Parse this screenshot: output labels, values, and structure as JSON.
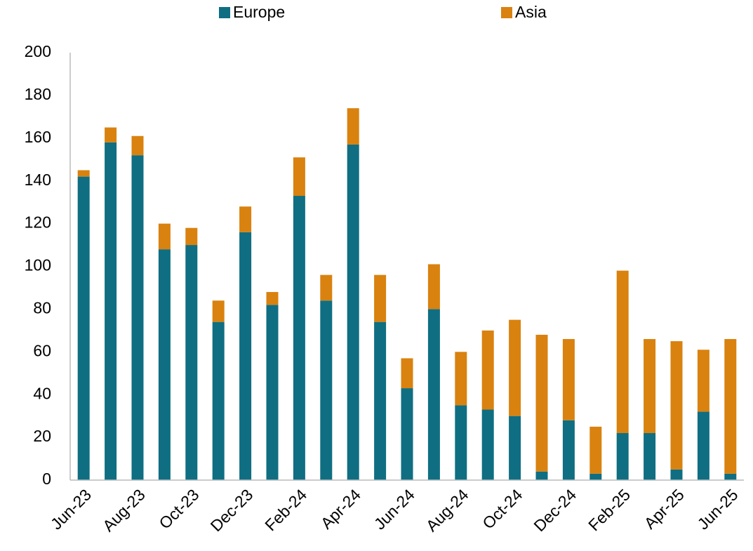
{
  "chart_data": {
    "type": "stacked_bar",
    "categories": [
      "Jun-23",
      null,
      "Aug-23",
      null,
      "Oct-23",
      null,
      "Dec-23",
      null,
      "Feb-24",
      null,
      "Apr-24",
      null,
      "Jun-24",
      null,
      "Aug-24",
      null,
      "Oct-24",
      null,
      "Dec-24",
      null,
      "Feb-25",
      null,
      "Apr-25",
      null,
      "Jun-25"
    ],
    "series": [
      {
        "name": "Europe",
        "color": "#0f6e82",
        "values": [
          142,
          158,
          152,
          108,
          110,
          74,
          116,
          82,
          133,
          84,
          157,
          74,
          43,
          80,
          35,
          33,
          30,
          4,
          28,
          3,
          22,
          22,
          5,
          32,
          3
        ]
      },
      {
        "name": "Asia",
        "color": "#d9820f",
        "values": [
          3,
          7,
          9,
          12,
          8,
          10,
          12,
          6,
          18,
          12,
          17,
          22,
          14,
          21,
          25,
          37,
          45,
          64,
          38,
          22,
          76,
          44,
          60,
          29,
          63
        ]
      }
    ],
    "ylim": [
      0,
      200
    ],
    "yticks": [
      0,
      20,
      40,
      60,
      80,
      100,
      120,
      140,
      160,
      180,
      200
    ],
    "legend": "top",
    "grid": false
  }
}
